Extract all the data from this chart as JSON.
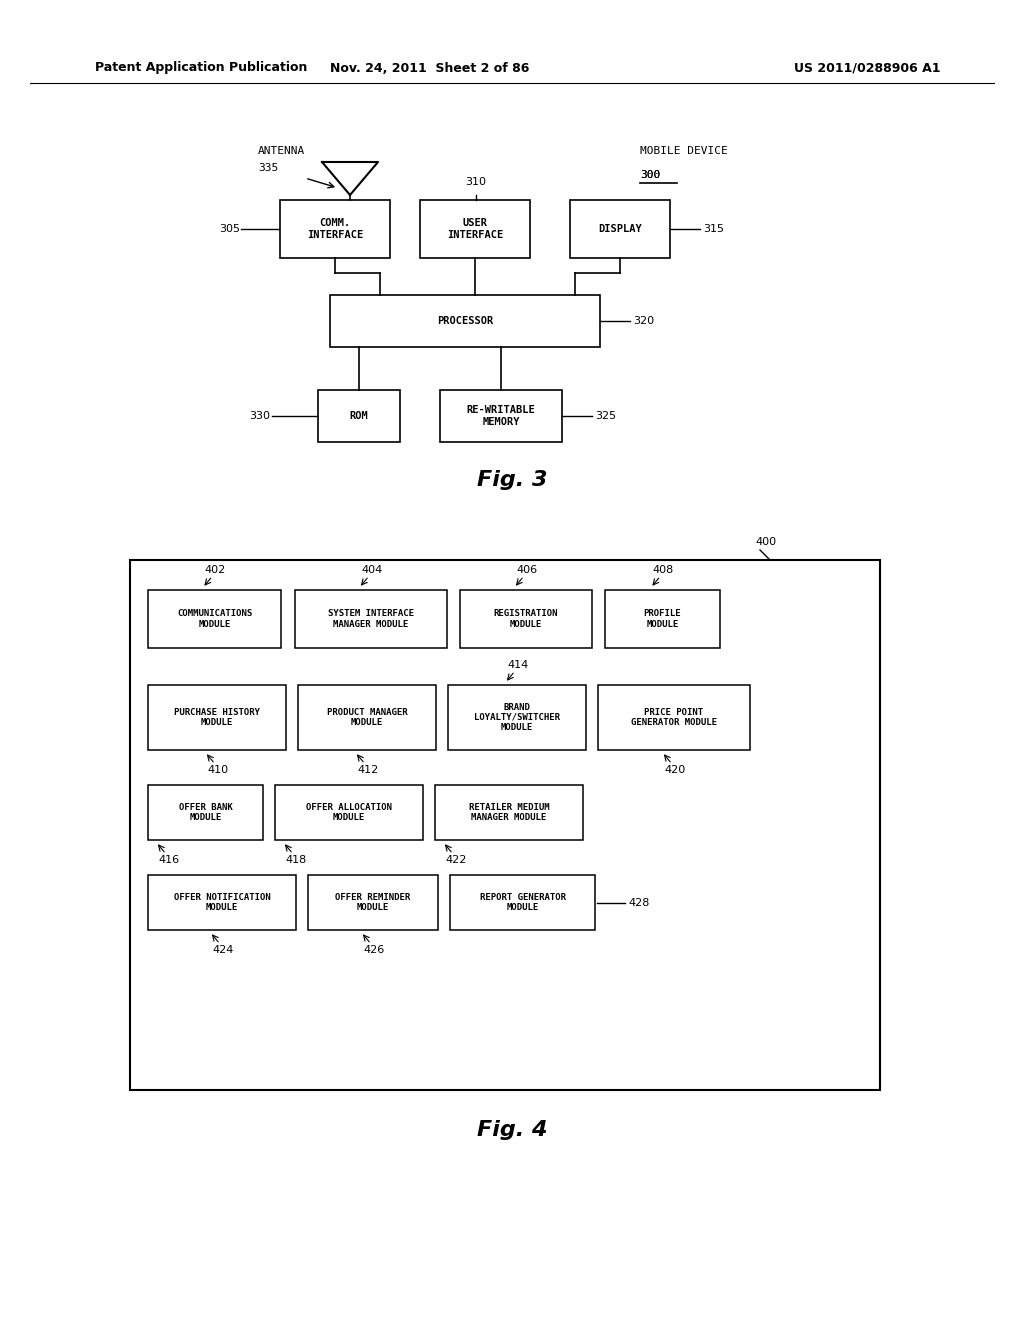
{
  "header_left": "Patent Application Publication",
  "header_mid": "Nov. 24, 2011  Sheet 2 of 86",
  "header_right": "US 2011/0288906 A1",
  "bg_color": "#ffffff"
}
